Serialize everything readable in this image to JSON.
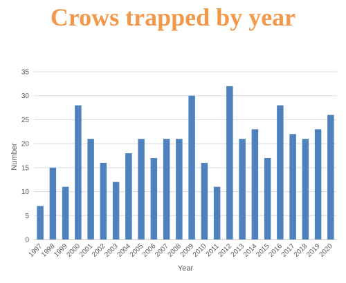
{
  "chart_data": {
    "type": "bar",
    "title": "Crows trapped by year",
    "xlabel": "Year",
    "ylabel": "Number",
    "ylim": [
      0,
      35
    ],
    "yticks": [
      0,
      5,
      10,
      15,
      20,
      25,
      30,
      35
    ],
    "grid": true,
    "bar_color": "#4F81BD",
    "grid_color": "#D9D9D9",
    "title_color": "#F2984A",
    "categories": [
      "1997",
      "1998",
      "1999",
      "2000",
      "2001",
      "2002",
      "2003",
      "2004",
      "2005",
      "2006",
      "2007",
      "2008",
      "2009",
      "2010",
      "2011",
      "2012",
      "2013",
      "2014",
      "2015",
      "2016",
      "2017",
      "2018",
      "2019",
      "2020"
    ],
    "values": [
      7,
      15,
      11,
      28,
      21,
      16,
      12,
      18,
      21,
      17,
      21,
      21,
      30,
      16,
      11,
      32,
      21,
      23,
      17,
      28,
      22,
      21,
      23,
      26
    ]
  }
}
